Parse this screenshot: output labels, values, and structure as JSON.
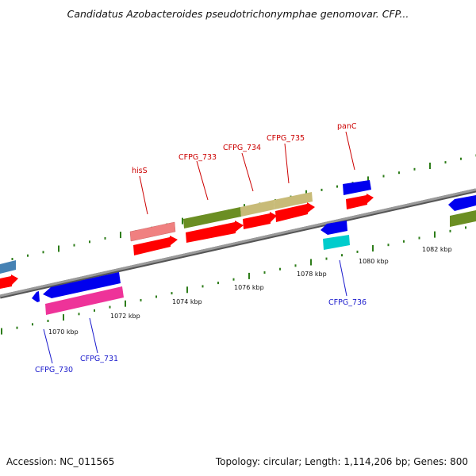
{
  "title": "Candidatus Azobacteroides pseudotrichonymphae genomovar. CFP...",
  "footer": {
    "accession": "Accession: NC_011565",
    "topology": "Topology: circular; Length: 1,114,206 bp; Genes: 800"
  },
  "colors": {
    "backbone": "#8a8a8a",
    "tick": "#2e7d1a",
    "label_forward": "#cc0000",
    "label_reverse": "#1a1acc",
    "gene_red": "#ff0000",
    "gene_blue": "#0000ee",
    "gene_cyan": "#00cccc",
    "gene_pink": "#ee3399",
    "gene_salmon": "#f08080",
    "gene_olive": "#6b8e23",
    "gene_khaki": "#c8bb78",
    "gene_steel": "#4682b4"
  },
  "kbp_ticks": [
    "1070 kbp",
    "1072 kbp",
    "1074 kbp",
    "1076 kbp",
    "1078 kbp",
    "1080 kbp",
    "1082 kbp"
  ],
  "gene_labels": {
    "forward": [
      "hisS",
      "CFPG_733",
      "CFPG_734",
      "CFPG_735",
      "panC"
    ],
    "reverse": [
      "CFPG_730",
      "CFPG_731",
      "CFPG_736"
    ]
  }
}
